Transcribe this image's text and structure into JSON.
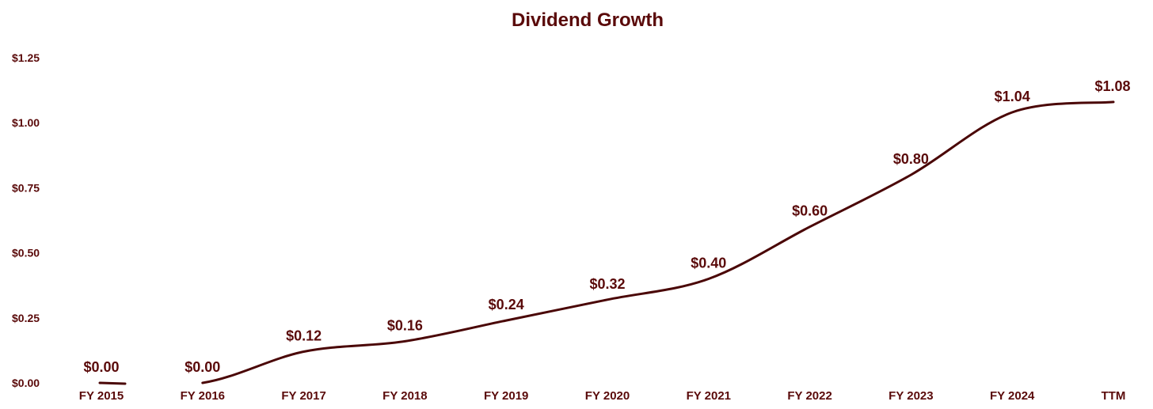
{
  "colors": {
    "text": "#5a0a0a",
    "line": "#4a0606",
    "background": "#ffffff"
  },
  "chart_data": {
    "type": "line",
    "title": "Dividend Growth",
    "xlabel": "",
    "ylabel": "",
    "categories": [
      "FY 2015",
      "FY 2016",
      "FY 2017",
      "FY 2018",
      "FY 2019",
      "FY 2020",
      "FY 2021",
      "FY 2022",
      "FY 2023",
      "FY 2024",
      "TTM"
    ],
    "series": [
      {
        "name": "Dividend",
        "values": [
          0.0,
          0.0,
          0.12,
          0.16,
          0.24,
          0.32,
          0.4,
          0.6,
          0.8,
          1.04,
          1.08
        ]
      }
    ],
    "data_labels": [
      "$0.00",
      "$0.00",
      "$0.12",
      "$0.16",
      "$0.24",
      "$0.32",
      "$0.40",
      "$0.60",
      "$0.80",
      "$1.04",
      "$1.08"
    ],
    "y_ticks": [
      0,
      0.25,
      0.5,
      0.75,
      1.0,
      1.25
    ],
    "y_tick_labels": [
      "$0.00",
      "$0.25",
      "$0.50",
      "$0.75",
      "$1.00",
      "$1.25"
    ],
    "ylim": [
      0,
      1.25
    ],
    "grid": false,
    "legend": "none"
  }
}
